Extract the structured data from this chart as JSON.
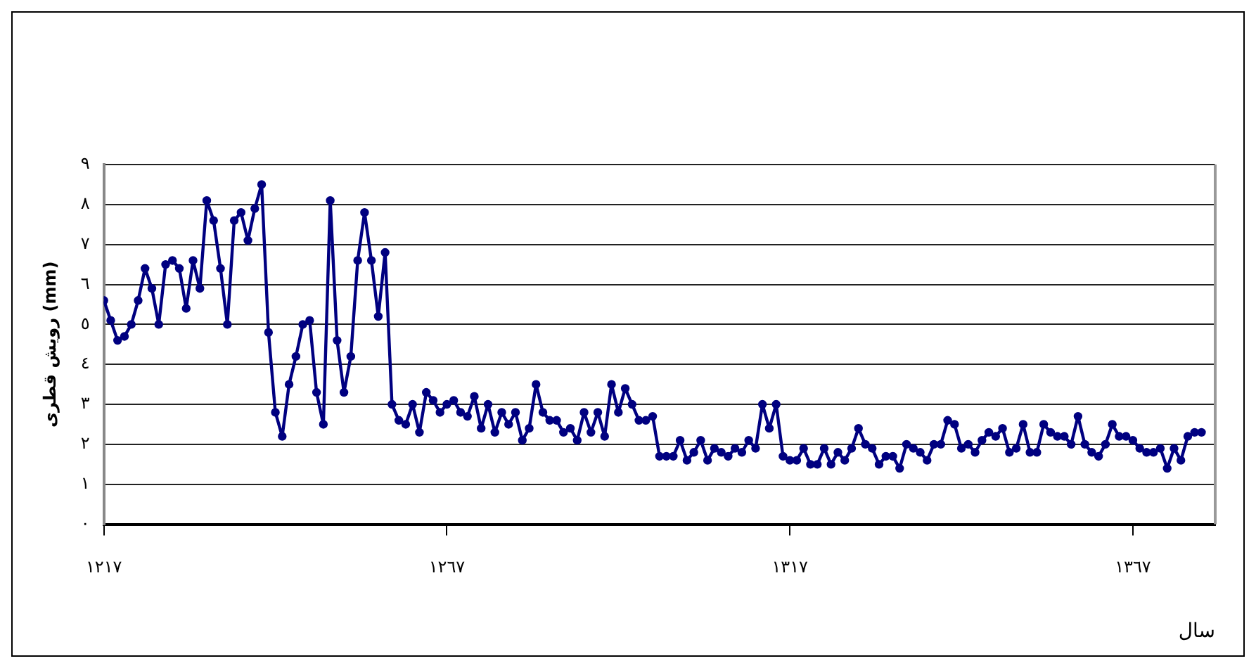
{
  "chart_data": {
    "type": "line",
    "xlabel": "سال",
    "ylabel": "رویش قطری (mm)",
    "x": [
      1217,
      1218,
      1219,
      1220,
      1221,
      1222,
      1223,
      1224,
      1225,
      1226,
      1227,
      1228,
      1229,
      1230,
      1231,
      1232,
      1233,
      1234,
      1235,
      1236,
      1237,
      1238,
      1239,
      1240,
      1241,
      1242,
      1243,
      1244,
      1245,
      1246,
      1247,
      1248,
      1249,
      1250,
      1251,
      1252,
      1253,
      1254,
      1255,
      1256,
      1257,
      1258,
      1259,
      1260,
      1261,
      1262,
      1263,
      1264,
      1265,
      1266,
      1267,
      1268,
      1269,
      1270,
      1271,
      1272,
      1273,
      1274,
      1275,
      1276,
      1277,
      1278,
      1279,
      1280,
      1281,
      1282,
      1283,
      1284,
      1285,
      1286,
      1287,
      1288,
      1289,
      1290,
      1291,
      1292,
      1293,
      1294,
      1295,
      1296,
      1297,
      1298,
      1299,
      1300,
      1301,
      1302,
      1303,
      1304,
      1305,
      1306,
      1307,
      1308,
      1309,
      1310,
      1311,
      1312,
      1313,
      1314,
      1315,
      1316,
      1317,
      1318,
      1319,
      1320,
      1321,
      1322,
      1323,
      1324,
      1325,
      1326,
      1327,
      1328,
      1329,
      1330,
      1331,
      1332,
      1333,
      1334,
      1335,
      1336,
      1337,
      1338,
      1339,
      1340,
      1341,
      1342,
      1343,
      1344,
      1345,
      1346,
      1347,
      1348,
      1349,
      1350,
      1351,
      1352,
      1353,
      1354,
      1355,
      1356,
      1357,
      1358,
      1359,
      1360,
      1361,
      1362,
      1363,
      1364,
      1365,
      1366,
      1367,
      1368,
      1369,
      1370,
      1371,
      1372,
      1373,
      1374,
      1375,
      1376,
      1377
    ],
    "series": [
      {
        "color": "#000080",
        "values": [
          5.6,
          5.1,
          4.6,
          4.7,
          5.0,
          5.6,
          6.4,
          5.9,
          5.0,
          6.5,
          6.6,
          6.4,
          5.4,
          6.6,
          5.9,
          8.1,
          7.6,
          6.4,
          5.0,
          7.6,
          7.8,
          7.1,
          7.9,
          8.5,
          4.8,
          2.8,
          2.2,
          3.5,
          4.2,
          5.0,
          5.1,
          3.3,
          2.5,
          8.1,
          4.6,
          3.3,
          4.2,
          6.6,
          7.8,
          6.6,
          5.2,
          6.8,
          3.0,
          2.6,
          2.5,
          3.0,
          2.3,
          3.3,
          3.1,
          2.8,
          3.0,
          3.1,
          2.8,
          2.7,
          3.2,
          2.4,
          3.0,
          2.3,
          2.8,
          2.5,
          2.8,
          2.1,
          2.4,
          3.5,
          2.8,
          2.6,
          2.6,
          2.3,
          2.4,
          2.1,
          2.8,
          2.3,
          2.8,
          2.2,
          3.5,
          2.8,
          3.4,
          3.0,
          2.6,
          2.6,
          2.7,
          1.7,
          1.7,
          1.7,
          2.1,
          1.6,
          1.8,
          2.1,
          1.6,
          1.9,
          1.8,
          1.7,
          1.9,
          1.8,
          2.1,
          1.9,
          3.0,
          2.4,
          3.0,
          1.7,
          1.6,
          1.6,
          1.9,
          1.5,
          1.5,
          1.9,
          1.5,
          1.8,
          1.6,
          1.9,
          2.4,
          2.0,
          1.9,
          1.5,
          1.7,
          1.7,
          1.4,
          2.0,
          1.9,
          1.8,
          1.6,
          2.0,
          2.0,
          2.6,
          2.5,
          1.9,
          2.0,
          1.8,
          2.1,
          2.3,
          2.2,
          2.4,
          1.8,
          1.9,
          2.5,
          1.8,
          1.8,
          2.5,
          2.3,
          2.2,
          2.2,
          2.0,
          2.7,
          2.0,
          1.8,
          1.7,
          2.0,
          2.5,
          2.2,
          2.2,
          2.1,
          1.9,
          1.8,
          1.8,
          1.9,
          1.4,
          1.9,
          1.6,
          2.2,
          2.3,
          2.3
        ]
      }
    ],
    "xlim": [
      1217,
      1379
    ],
    "xticks": [
      {
        "value": 1217,
        "label": "١٢١٧"
      },
      {
        "value": 1267,
        "label": "١٢٦٧"
      },
      {
        "value": 1317,
        "label": "١٣١٧"
      },
      {
        "value": 1367,
        "label": "١٣٦٧"
      }
    ],
    "ylim": [
      0,
      9
    ],
    "yticks": [
      {
        "value": 0,
        "label": "٠"
      },
      {
        "value": 1,
        "label": "١"
      },
      {
        "value": 2,
        "label": "٢"
      },
      {
        "value": 3,
        "label": "٣"
      },
      {
        "value": 4,
        "label": "٤"
      },
      {
        "value": 5,
        "label": "٥"
      },
      {
        "value": 6,
        "label": "٦"
      },
      {
        "value": 7,
        "label": "٧"
      },
      {
        "value": 8,
        "label": "٨"
      },
      {
        "value": 9,
        "label": "٩"
      }
    ],
    "grid": "y",
    "legend": false,
    "marker": "circle",
    "line_style": "solid"
  }
}
